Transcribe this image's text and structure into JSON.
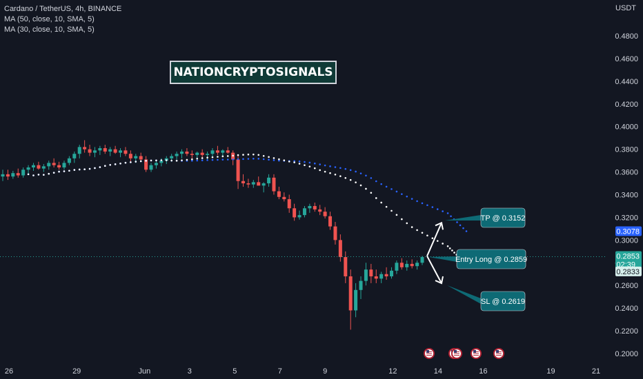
{
  "legend": {
    "symbol": "Cardano / TetherUS, 4h, BINANCE",
    "ma1": "MA (50, close, 10, SMA, 5)",
    "ma2": "MA (30, close, 10, SMA, 5)"
  },
  "watermark": "NATIONCRYPTOSIGNALS",
  "currency": "USDT",
  "colors": {
    "background": "#131722",
    "up": "#26a69a",
    "down": "#ef5350",
    "ma_blue": "#2962ff",
    "ma_white": "#ffffff",
    "annotation": "#0e6a75",
    "price_blue": "#2962ff",
    "price_green": "#26a69a"
  },
  "price_labels": {
    "ma50": "0.3078",
    "current": "0.2853",
    "countdown": "02:39",
    "ma30": "0.2833"
  },
  "annotations": [
    {
      "name": "tp-label",
      "text": "TP @ 0.3152"
    },
    {
      "name": "entry-label",
      "text": "Entry Long @ 0.2859"
    },
    {
      "name": "sl-label",
      "text": "SL @ 0.2619"
    }
  ],
  "chart_data": {
    "type": "candlestick",
    "title": "Cardano / TetherUS, 4h, BINANCE",
    "ylabel": "USDT",
    "ylim": [
      0.19,
      0.5
    ],
    "y_ticks": [
      0.2,
      0.22,
      0.24,
      0.26,
      0.28,
      0.3,
      0.32,
      0.34,
      0.36,
      0.38,
      0.4,
      0.42,
      0.44,
      0.46,
      0.48
    ],
    "x_ticks": [
      {
        "label": "26",
        "day": 0
      },
      {
        "label": "29",
        "day": 3
      },
      {
        "label": "Jun",
        "day": 6
      },
      {
        "label": "3",
        "day": 8
      },
      {
        "label": "5",
        "day": 10
      },
      {
        "label": "7",
        "day": 12
      },
      {
        "label": "9",
        "day": 14
      },
      {
        "label": "12",
        "day": 17
      },
      {
        "label": "14",
        "day": 19
      },
      {
        "label": "16",
        "day": 21
      },
      {
        "label": "19",
        "day": 24
      },
      {
        "label": "21",
        "day": 26
      }
    ],
    "grid": false,
    "candles": [
      [
        0.356,
        0.362,
        0.352,
        0.358
      ],
      [
        0.358,
        0.362,
        0.353,
        0.356
      ],
      [
        0.356,
        0.361,
        0.354,
        0.359
      ],
      [
        0.359,
        0.363,
        0.355,
        0.357
      ],
      [
        0.357,
        0.364,
        0.355,
        0.362
      ],
      [
        0.362,
        0.366,
        0.358,
        0.364
      ],
      [
        0.364,
        0.368,
        0.361,
        0.366
      ],
      [
        0.366,
        0.369,
        0.362,
        0.363
      ],
      [
        0.363,
        0.367,
        0.36,
        0.365
      ],
      [
        0.365,
        0.37,
        0.362,
        0.368
      ],
      [
        0.368,
        0.372,
        0.364,
        0.366
      ],
      [
        0.366,
        0.369,
        0.362,
        0.364
      ],
      [
        0.364,
        0.37,
        0.362,
        0.368
      ],
      [
        0.368,
        0.374,
        0.366,
        0.372
      ],
      [
        0.372,
        0.378,
        0.368,
        0.376
      ],
      [
        0.376,
        0.384,
        0.372,
        0.382
      ],
      [
        0.382,
        0.388,
        0.377,
        0.38
      ],
      [
        0.38,
        0.384,
        0.374,
        0.377
      ],
      [
        0.377,
        0.382,
        0.373,
        0.379
      ],
      [
        0.379,
        0.383,
        0.375,
        0.381
      ],
      [
        0.381,
        0.384,
        0.376,
        0.378
      ],
      [
        0.378,
        0.382,
        0.374,
        0.38
      ],
      [
        0.38,
        0.383,
        0.376,
        0.377
      ],
      [
        0.377,
        0.381,
        0.373,
        0.379
      ],
      [
        0.379,
        0.382,
        0.374,
        0.376
      ],
      [
        0.376,
        0.379,
        0.369,
        0.372
      ],
      [
        0.372,
        0.376,
        0.368,
        0.374
      ],
      [
        0.374,
        0.377,
        0.37,
        0.371
      ],
      [
        0.371,
        0.374,
        0.36,
        0.362
      ],
      [
        0.362,
        0.368,
        0.36,
        0.366
      ],
      [
        0.366,
        0.37,
        0.363,
        0.368
      ],
      [
        0.368,
        0.372,
        0.365,
        0.37
      ],
      [
        0.37,
        0.374,
        0.367,
        0.372
      ],
      [
        0.372,
        0.376,
        0.369,
        0.374
      ],
      [
        0.374,
        0.378,
        0.371,
        0.376
      ],
      [
        0.376,
        0.38,
        0.372,
        0.378
      ],
      [
        0.378,
        0.381,
        0.374,
        0.376
      ],
      [
        0.376,
        0.379,
        0.372,
        0.375
      ],
      [
        0.375,
        0.378,
        0.371,
        0.377
      ],
      [
        0.377,
        0.38,
        0.373,
        0.375
      ],
      [
        0.375,
        0.378,
        0.371,
        0.376
      ],
      [
        0.376,
        0.381,
        0.373,
        0.379
      ],
      [
        0.379,
        0.383,
        0.375,
        0.377
      ],
      [
        0.377,
        0.38,
        0.373,
        0.379
      ],
      [
        0.379,
        0.382,
        0.376,
        0.377
      ],
      [
        0.377,
        0.379,
        0.366,
        0.371
      ],
      [
        0.371,
        0.374,
        0.345,
        0.352
      ],
      [
        0.352,
        0.358,
        0.347,
        0.35
      ],
      [
        0.35,
        0.354,
        0.346,
        0.349
      ],
      [
        0.349,
        0.353,
        0.346,
        0.351
      ],
      [
        0.351,
        0.356,
        0.348,
        0.348
      ],
      [
        0.348,
        0.351,
        0.342,
        0.35
      ],
      [
        0.35,
        0.358,
        0.347,
        0.355
      ],
      [
        0.355,
        0.358,
        0.34,
        0.343
      ],
      [
        0.343,
        0.347,
        0.336,
        0.338
      ],
      [
        0.338,
        0.342,
        0.334,
        0.336
      ],
      [
        0.336,
        0.34,
        0.324,
        0.328
      ],
      [
        0.328,
        0.332,
        0.317,
        0.32
      ],
      [
        0.32,
        0.326,
        0.318,
        0.322
      ],
      [
        0.322,
        0.33,
        0.32,
        0.328
      ],
      [
        0.328,
        0.332,
        0.324,
        0.33
      ],
      [
        0.33,
        0.333,
        0.325,
        0.327
      ],
      [
        0.327,
        0.331,
        0.322,
        0.325
      ],
      [
        0.325,
        0.329,
        0.319,
        0.321
      ],
      [
        0.321,
        0.325,
        0.309,
        0.312
      ],
      [
        0.312,
        0.316,
        0.296,
        0.3
      ],
      [
        0.3,
        0.305,
        0.281,
        0.285
      ],
      [
        0.285,
        0.29,
        0.262,
        0.268
      ],
      [
        0.268,
        0.274,
        0.221,
        0.238
      ],
      [
        0.238,
        0.262,
        0.232,
        0.256
      ],
      [
        0.256,
        0.268,
        0.248,
        0.264
      ],
      [
        0.264,
        0.28,
        0.26,
        0.274
      ],
      [
        0.274,
        0.279,
        0.262,
        0.268
      ],
      [
        0.268,
        0.274,
        0.262,
        0.266
      ],
      [
        0.266,
        0.272,
        0.262,
        0.27
      ],
      [
        0.27,
        0.276,
        0.265,
        0.268
      ],
      [
        0.268,
        0.276,
        0.266,
        0.273
      ],
      [
        0.273,
        0.282,
        0.27,
        0.28
      ],
      [
        0.28,
        0.284,
        0.274,
        0.276
      ],
      [
        0.276,
        0.282,
        0.273,
        0.279
      ],
      [
        0.279,
        0.283,
        0.275,
        0.277
      ],
      [
        0.277,
        0.282,
        0.274,
        0.28
      ],
      [
        0.28,
        0.286,
        0.278,
        0.285
      ]
    ],
    "ma50_last": 0.3078,
    "ma30_last": 0.2833,
    "trade": {
      "entry": 0.2859,
      "tp": 0.3152,
      "sl": 0.2619
    }
  }
}
